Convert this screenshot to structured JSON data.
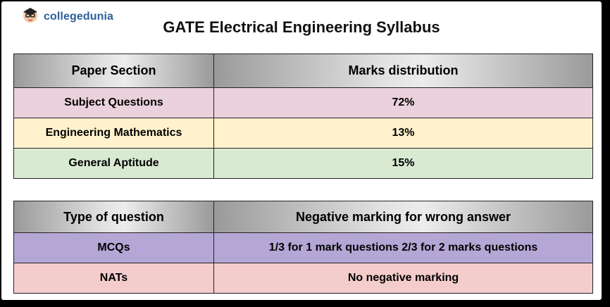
{
  "brand": {
    "name": "collegedunia",
    "logo_icon": "student-mascot-icon"
  },
  "title": "GATE Electrical Engineering Syllabus",
  "marks_table": {
    "headers": [
      "Paper Section",
      "Marks distribution"
    ],
    "rows": [
      [
        "Subject Questions",
        "72%"
      ],
      [
        "Engineering Mathematics",
        "13%"
      ],
      [
        "General Aptitude",
        "15%"
      ]
    ]
  },
  "negative_table": {
    "headers": [
      "Type of question",
      "Negative marking for wrong answer"
    ],
    "rows": [
      [
        "MCQs",
        "1/3 for 1 mark questions 2/3 for 2 marks questions"
      ],
      [
        "NATs",
        "No negative marking"
      ]
    ]
  },
  "colors": {
    "pink": "#ead1dc",
    "yellow": "#fff2cc",
    "green": "#d9ead3",
    "purple": "#b4a7d6",
    "rose": "#f4cccc",
    "brand_blue": "#2d5f9a"
  }
}
